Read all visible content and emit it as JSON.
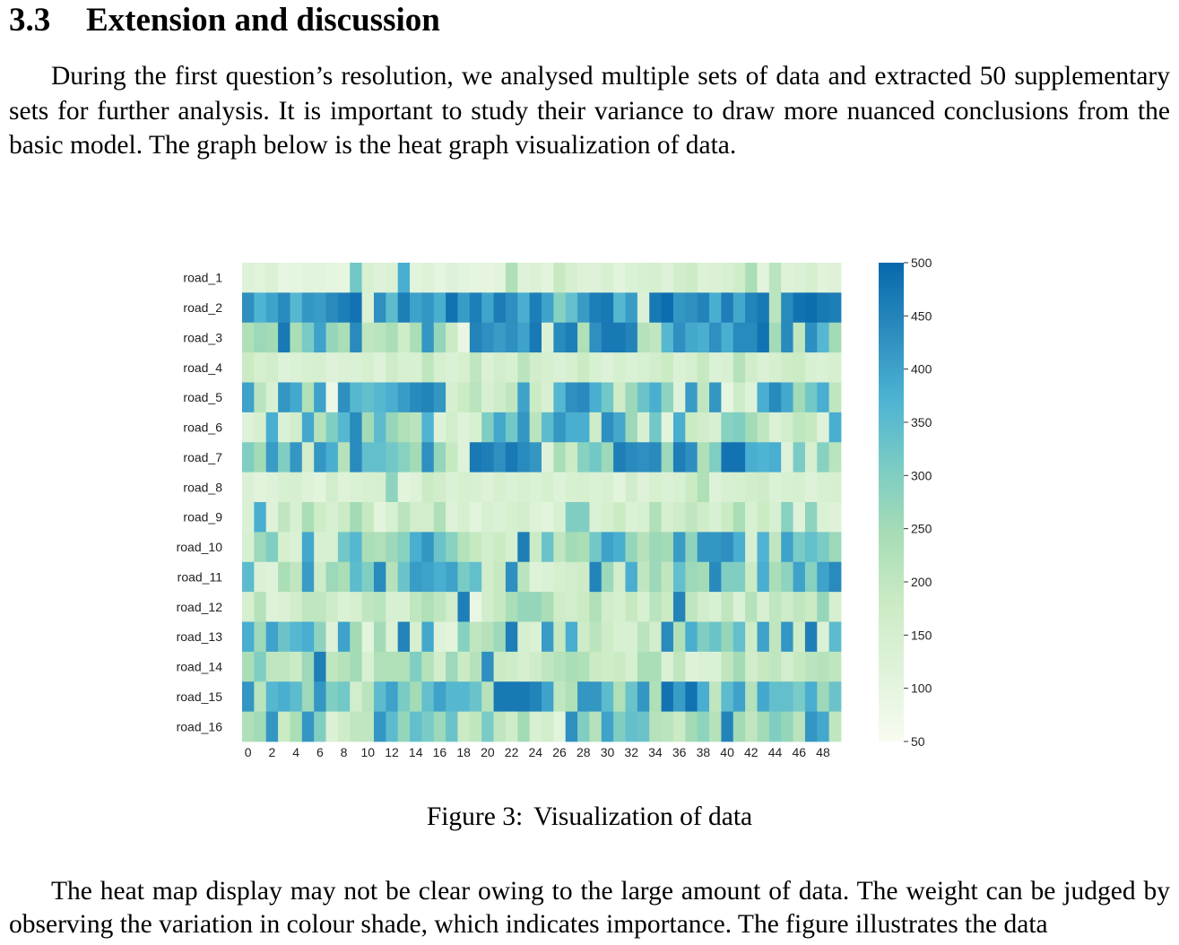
{
  "section": {
    "number": "3.3",
    "title": "Extension and discussion"
  },
  "paragraphs": [
    "During the first question’s resolution, we analysed multiple sets of data and extracted 50 supplementary sets for further analysis. It is important to study their variance to draw more nuanced conclusions from the basic model. The graph below is the heat graph visualization of data.",
    "The heat map display may not be clear owing to the large amount of data. The weight can be judged by observing the variation in colour shade, which indicates importance. The figure illustrates the data"
  ],
  "figure": {
    "label": "Figure 3:",
    "caption": "Visualization of data"
  },
  "chart_data": {
    "type": "heatmap",
    "title": "",
    "xlabel": "",
    "ylabel": "",
    "rows": [
      "road_1",
      "road_2",
      "road_3",
      "road_4",
      "road_5",
      "road_6",
      "road_7",
      "road_8",
      "road_9",
      "road_10",
      "road_11",
      "road_12",
      "road_13",
      "road_14",
      "road_15",
      "road_16"
    ],
    "columns": [
      0,
      1,
      2,
      3,
      4,
      5,
      6,
      7,
      8,
      9,
      10,
      11,
      12,
      13,
      14,
      15,
      16,
      17,
      18,
      19,
      20,
      21,
      22,
      23,
      24,
      25,
      26,
      27,
      28,
      29,
      30,
      31,
      32,
      33,
      34,
      35,
      36,
      37,
      38,
      39,
      40,
      41,
      42,
      43,
      44,
      45,
      46,
      47,
      48,
      49
    ],
    "x_tick_labels": [
      "0",
      "2",
      "4",
      "6",
      "8",
      "10",
      "12",
      "14",
      "16",
      "18",
      "20",
      "22",
      "24",
      "26",
      "28",
      "30",
      "32",
      "34",
      "36",
      "38",
      "40",
      "42",
      "44",
      "46",
      "48"
    ],
    "colorbar": {
      "min": 50,
      "max": 500,
      "ticks": [
        50,
        100,
        150,
        200,
        250,
        300,
        350,
        400,
        450,
        500
      ],
      "colors": [
        "#f7fcf0",
        "#e0f3db",
        "#ccebc5",
        "#a8ddb5",
        "#7bccc4",
        "#4eb3d3",
        "#2b8cbe",
        "#0868ac"
      ]
    },
    "values": [
      [
        120,
        115,
        130,
        95,
        100,
        105,
        110,
        100,
        95,
        320,
        140,
        120,
        130,
        380,
        110,
        120,
        100,
        120,
        105,
        100,
        100,
        110,
        230,
        120,
        130,
        110,
        185,
        145,
        120,
        120,
        140,
        110,
        130,
        140,
        150,
        120,
        160,
        175,
        125,
        130,
        140,
        165,
        240,
        110,
        210,
        120,
        130,
        150,
        110,
        120
      ],
      [
        430,
        370,
        400,
        440,
        360,
        420,
        410,
        440,
        460,
        480,
        130,
        430,
        350,
        460,
        400,
        420,
        380,
        480,
        410,
        460,
        395,
        465,
        430,
        380,
        460,
        400,
        290,
        340,
        410,
        460,
        470,
        360,
        410,
        130,
        470,
        490,
        420,
        430,
        450,
        380,
        460,
        390,
        450,
        470,
        210,
        440,
        480,
        490,
        470,
        460
      ],
      [
        230,
        260,
        250,
        470,
        240,
        310,
        400,
        270,
        240,
        440,
        200,
        210,
        240,
        170,
        240,
        420,
        270,
        180,
        90,
        450,
        430,
        410,
        430,
        400,
        470,
        130,
        440,
        460,
        230,
        430,
        470,
        470,
        450,
        220,
        200,
        360,
        430,
        390,
        380,
        430,
        380,
        440,
        440,
        480,
        250,
        440,
        200,
        430,
        360,
        250
      ],
      [
        180,
        150,
        160,
        120,
        130,
        140,
        150,
        120,
        130,
        130,
        150,
        120,
        170,
        140,
        140,
        200,
        150,
        130,
        150,
        200,
        130,
        160,
        140,
        210,
        160,
        150,
        130,
        150,
        180,
        140,
        120,
        150,
        130,
        140,
        160,
        180,
        130,
        150,
        190,
        130,
        140,
        220,
        160,
        130,
        150,
        170,
        180,
        140,
        130,
        150
      ],
      [
        400,
        210,
        140,
        420,
        390,
        230,
        400,
        80,
        430,
        360,
        340,
        360,
        380,
        410,
        440,
        450,
        420,
        150,
        180,
        210,
        140,
        170,
        200,
        400,
        180,
        140,
        360,
        430,
        440,
        380,
        320,
        170,
        260,
        330,
        380,
        280,
        120,
        410,
        200,
        420,
        100,
        170,
        120,
        380,
        440,
        390,
        250,
        320,
        380,
        200
      ],
      [
        120,
        150,
        380,
        130,
        160,
        390,
        220,
        300,
        360,
        440,
        250,
        350,
        270,
        230,
        210,
        370,
        120,
        160,
        120,
        140,
        300,
        390,
        320,
        420,
        210,
        350,
        420,
        380,
        380,
        170,
        430,
        390,
        260,
        140,
        320,
        110,
        380,
        180,
        160,
        140,
        290,
        300,
        250,
        200,
        130,
        160,
        200,
        190,
        120,
        380
      ],
      [
        300,
        250,
        410,
        300,
        420,
        160,
        420,
        380,
        220,
        440,
        340,
        340,
        320,
        290,
        250,
        430,
        270,
        190,
        120,
        470,
        460,
        430,
        470,
        440,
        420,
        120,
        240,
        180,
        290,
        320,
        260,
        460,
        440,
        430,
        440,
        260,
        460,
        430,
        230,
        300,
        480,
        480,
        380,
        370,
        380,
        120,
        310,
        150,
        290,
        210
      ],
      [
        130,
        110,
        120,
        140,
        150,
        120,
        110,
        160,
        120,
        130,
        140,
        150,
        280,
        110,
        120,
        180,
        160,
        130,
        150,
        140,
        120,
        150,
        130,
        140,
        130,
        150,
        120,
        140,
        150,
        130,
        140,
        110,
        160,
        120,
        150,
        130,
        140,
        180,
        230,
        120,
        140,
        150,
        160,
        170,
        130,
        140,
        150,
        120,
        140,
        150
      ],
      [
        130,
        380,
        120,
        200,
        140,
        240,
        170,
        140,
        180,
        250,
        190,
        110,
        140,
        210,
        160,
        160,
        230,
        120,
        150,
        110,
        140,
        130,
        150,
        160,
        120,
        110,
        140,
        300,
        300,
        130,
        150,
        180,
        130,
        140,
        230,
        150,
        170,
        200,
        170,
        140,
        180,
        240,
        140,
        180,
        140,
        290,
        120,
        280,
        130,
        120
      ],
      [
        140,
        260,
        300,
        150,
        130,
        390,
        140,
        140,
        320,
        360,
        240,
        230,
        260,
        290,
        380,
        420,
        330,
        290,
        220,
        190,
        160,
        180,
        150,
        460,
        180,
        330,
        200,
        250,
        240,
        320,
        400,
        380,
        270,
        220,
        260,
        250,
        410,
        280,
        420,
        420,
        430,
        380,
        140,
        370,
        200,
        400,
        310,
        340,
        310,
        260
      ],
      [
        350,
        130,
        120,
        240,
        200,
        410,
        170,
        260,
        240,
        350,
        300,
        440,
        220,
        330,
        410,
        400,
        380,
        400,
        310,
        340,
        160,
        190,
        430,
        210,
        120,
        130,
        150,
        160,
        170,
        450,
        260,
        160,
        380,
        200,
        260,
        200,
        340,
        260,
        250,
        440,
        300,
        300,
        180,
        380,
        240,
        280,
        400,
        290,
        400,
        440
      ],
      [
        150,
        220,
        120,
        130,
        160,
        200,
        200,
        170,
        130,
        150,
        200,
        210,
        140,
        140,
        200,
        230,
        200,
        160,
        460,
        90,
        160,
        190,
        240,
        270,
        270,
        240,
        170,
        160,
        180,
        230,
        160,
        150,
        190,
        140,
        210,
        180,
        450,
        200,
        160,
        140,
        200,
        130,
        220,
        140,
        200,
        170,
        200,
        180,
        270,
        150
      ],
      [
        380,
        260,
        400,
        330,
        360,
        380,
        280,
        120,
        400,
        250,
        110,
        250,
        130,
        450,
        150,
        390,
        120,
        110,
        290,
        200,
        220,
        260,
        460,
        150,
        130,
        410,
        190,
        380,
        170,
        210,
        170,
        140,
        140,
        210,
        160,
        440,
        230,
        380,
        300,
        330,
        270,
        340,
        170,
        400,
        200,
        420,
        170,
        460,
        130,
        350
      ],
      [
        240,
        300,
        200,
        200,
        180,
        260,
        460,
        200,
        220,
        250,
        140,
        230,
        230,
        230,
        300,
        220,
        160,
        260,
        180,
        220,
        430,
        180,
        170,
        150,
        170,
        200,
        220,
        240,
        230,
        180,
        170,
        180,
        150,
        240,
        240,
        130,
        200,
        120,
        130,
        130,
        200,
        250,
        160,
        190,
        200,
        160,
        190,
        210,
        220,
        200
      ],
      [
        420,
        210,
        360,
        380,
        350,
        260,
        420,
        300,
        320,
        160,
        210,
        350,
        400,
        310,
        250,
        340,
        400,
        360,
        360,
        330,
        220,
        470,
        470,
        470,
        450,
        400,
        200,
        230,
        420,
        420,
        350,
        230,
        330,
        420,
        230,
        480,
        410,
        480,
        380,
        200,
        350,
        400,
        220,
        390,
        340,
        340,
        310,
        380,
        260,
        330
      ],
      [
        230,
        250,
        420,
        180,
        240,
        420,
        300,
        130,
        170,
        200,
        200,
        420,
        350,
        270,
        340,
        310,
        260,
        330,
        180,
        200,
        310,
        200,
        170,
        250,
        140,
        160,
        110,
        430,
        300,
        220,
        400,
        300,
        340,
        330,
        220,
        210,
        180,
        250,
        280,
        220,
        450,
        250,
        200,
        250,
        300,
        270,
        210,
        420,
        390,
        200
      ]
    ]
  }
}
